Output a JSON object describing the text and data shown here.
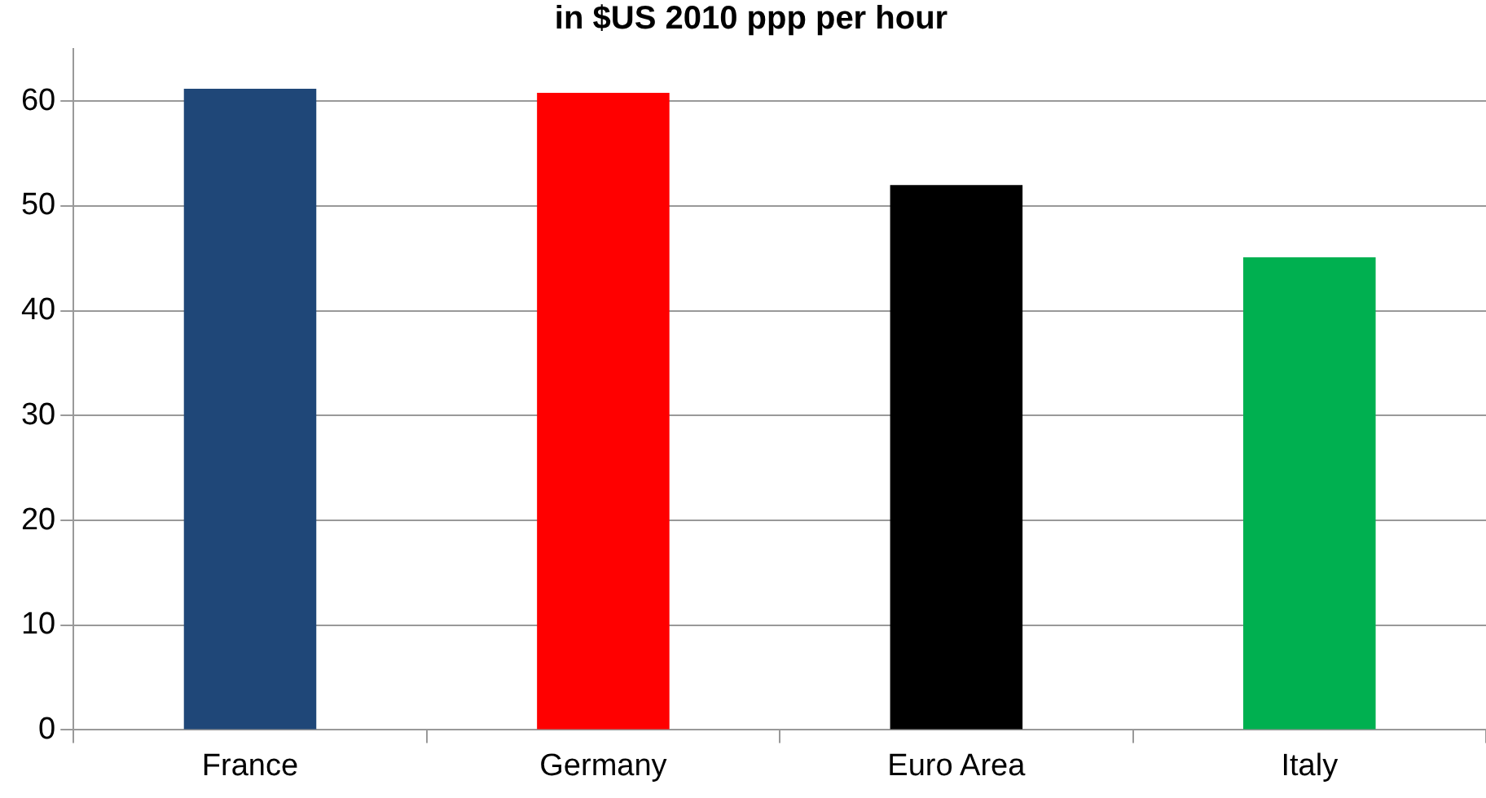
{
  "chart_data": {
    "type": "bar",
    "title": "in $US 2010 ppp per hour",
    "categories": [
      "France",
      "Germany",
      "Euro Area",
      "Italy"
    ],
    "values": [
      61.2,
      60.8,
      52.0,
      45.1
    ],
    "colors": [
      "#1f4778",
      "#ff0000",
      "#000000",
      "#00b050"
    ],
    "ylim": [
      0,
      65
    ],
    "yticks": [
      0,
      10,
      20,
      30,
      40,
      50,
      60
    ],
    "grid": "y",
    "legend": false
  }
}
